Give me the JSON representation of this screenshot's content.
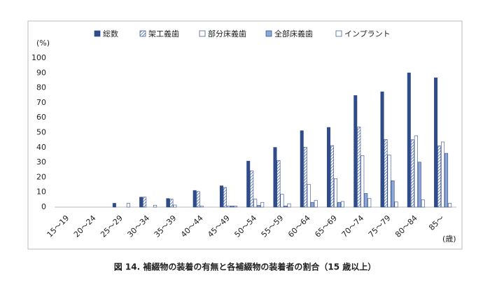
{
  "chart_data": {
    "type": "bar",
    "caption": "図 14. 補綴物の装着の有無と各補綴物の装着者の割合（15 歳以上）",
    "y_label": "(%)",
    "x_label": "(歳)",
    "categories": [
      "15～19",
      "20～24",
      "25～29",
      "30～34",
      "35～39",
      "40～44",
      "45～49",
      "50～54",
      "55～59",
      "60～64",
      "65～69",
      "70～74",
      "75～79",
      "80～84",
      "85～"
    ],
    "series": [
      {
        "name": "総数",
        "color": "#2f4b8a",
        "values": [
          0,
          0,
          2.6,
          6.7,
          5.8,
          11.2,
          14.3,
          30.9,
          40.1,
          51.3,
          53.5,
          74.9,
          77.4,
          90.1,
          86.8
        ]
      },
      {
        "name": "架工義歯",
        "color": "#4a6cb3",
        "hatch": true,
        "values": [
          0,
          0,
          0,
          6.7,
          5.3,
          10.4,
          13.2,
          24.4,
          31.3,
          40.2,
          41.3,
          53.7,
          45.4,
          45.2,
          41.1
        ]
      },
      {
        "name": "部分床義歯",
        "color": "#ffffff",
        "values": [
          0,
          0,
          0,
          0,
          1.4,
          0.7,
          0.8,
          5.3,
          8.7,
          15.2,
          19.1,
          34.6,
          35.0,
          47.9,
          43.7
        ]
      },
      {
        "name": "全部床義歯",
        "color": "#8ea6d6",
        "values": [
          0,
          0,
          0,
          0,
          0,
          0,
          0.8,
          1.2,
          0.8,
          3.2,
          3.2,
          9.2,
          17.7,
          30.2,
          36.1
        ]
      },
      {
        "name": "インプラント",
        "color": "#ffffff",
        "values": [
          0,
          0,
          2.6,
          1.3,
          0,
          0,
          0.8,
          3.2,
          2.3,
          4.6,
          3.8,
          5.8,
          3.5,
          4.9,
          2.6
        ]
      }
    ],
    "ylim": [
      0,
      100
    ],
    "yticks": [
      0,
      10,
      20,
      30,
      40,
      50,
      60,
      70,
      80,
      90,
      100
    ],
    "grid": false,
    "legend": "top"
  }
}
